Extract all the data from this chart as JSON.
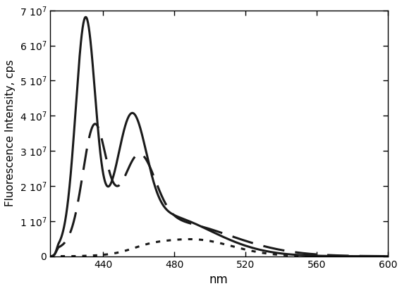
{
  "xlabel": "nm",
  "ylabel": "Fluorescence Intensity, cps",
  "xlim": [
    410,
    600
  ],
  "ylim": [
    0,
    70000000.0
  ],
  "xticks": [
    440,
    480,
    520,
    560,
    600
  ],
  "yticks": [
    0,
    10000000.0,
    20000000.0,
    30000000.0,
    40000000.0,
    50000000.0,
    60000000.0,
    70000000.0
  ],
  "line_color": "#1a1a1a",
  "background_color": "#ffffff",
  "solid_lw": 2.2,
  "dashed_lw": 2.2,
  "dotted_lw": 2.2,
  "figsize": [
    5.7,
    4.13
  ],
  "dpi": 100
}
